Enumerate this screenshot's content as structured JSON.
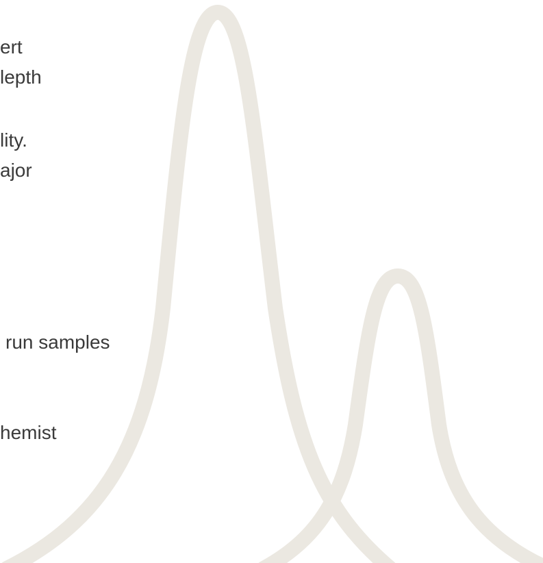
{
  "text_lines": [
    "ert",
    "lepth",
    "lity.",
    "ajor",
    "run samples",
    "hemist"
  ]
}
